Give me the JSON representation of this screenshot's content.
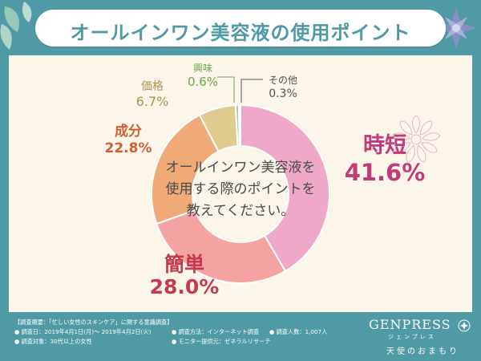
{
  "title": "オールインワン美容液の使用ポイント",
  "center_text": [
    "オールインワン美容液を",
    "使用する際のポイントを",
    "教えてください。"
  ],
  "colors": {
    "background": "#4f9aa5",
    "panel": "#fcf6ea",
    "title_text": "#4f9aa5"
  },
  "chart_data": {
    "type": "pie",
    "variant": "donut",
    "unit": "%",
    "categories": [
      "時短",
      "簡単",
      "成分",
      "価格",
      "興味",
      "その他"
    ],
    "values": [
      41.6,
      28.0,
      22.8,
      6.7,
      0.6,
      0.3
    ],
    "value_labels": [
      "41.6%",
      "28.0%",
      "22.8%",
      "6.7%",
      "0.6%",
      "0.3%"
    ],
    "colors": [
      "#f0a8c8",
      "#f4a2a2",
      "#f0aa78",
      "#dfcb8e",
      "#a8cf98",
      "#b9b9b9"
    ],
    "label_colors": [
      "#c23a7a",
      "#c43a4e",
      "#d05e30",
      "#a89452",
      "#6aa44e",
      "#555555"
    ],
    "legend": "none"
  },
  "footer": {
    "survey_title": "【調査概要：「忙しい女性のスキンケア」に関する意識調査】",
    "period": "● 調査日：2019年4月1日(月)～ 2019年4月2日(火)",
    "method": "● 調査方法：インターネット調査",
    "respondents": "● 調査人数：1,007人",
    "target": "● 調査対象：30代以上の女性",
    "provider": "● モニター提供元：ゼネラルリサーチ"
  },
  "brand": {
    "name": "GENPRESS",
    "kana": "ジェンプレス",
    "tagline": "天使のおまもり"
  }
}
